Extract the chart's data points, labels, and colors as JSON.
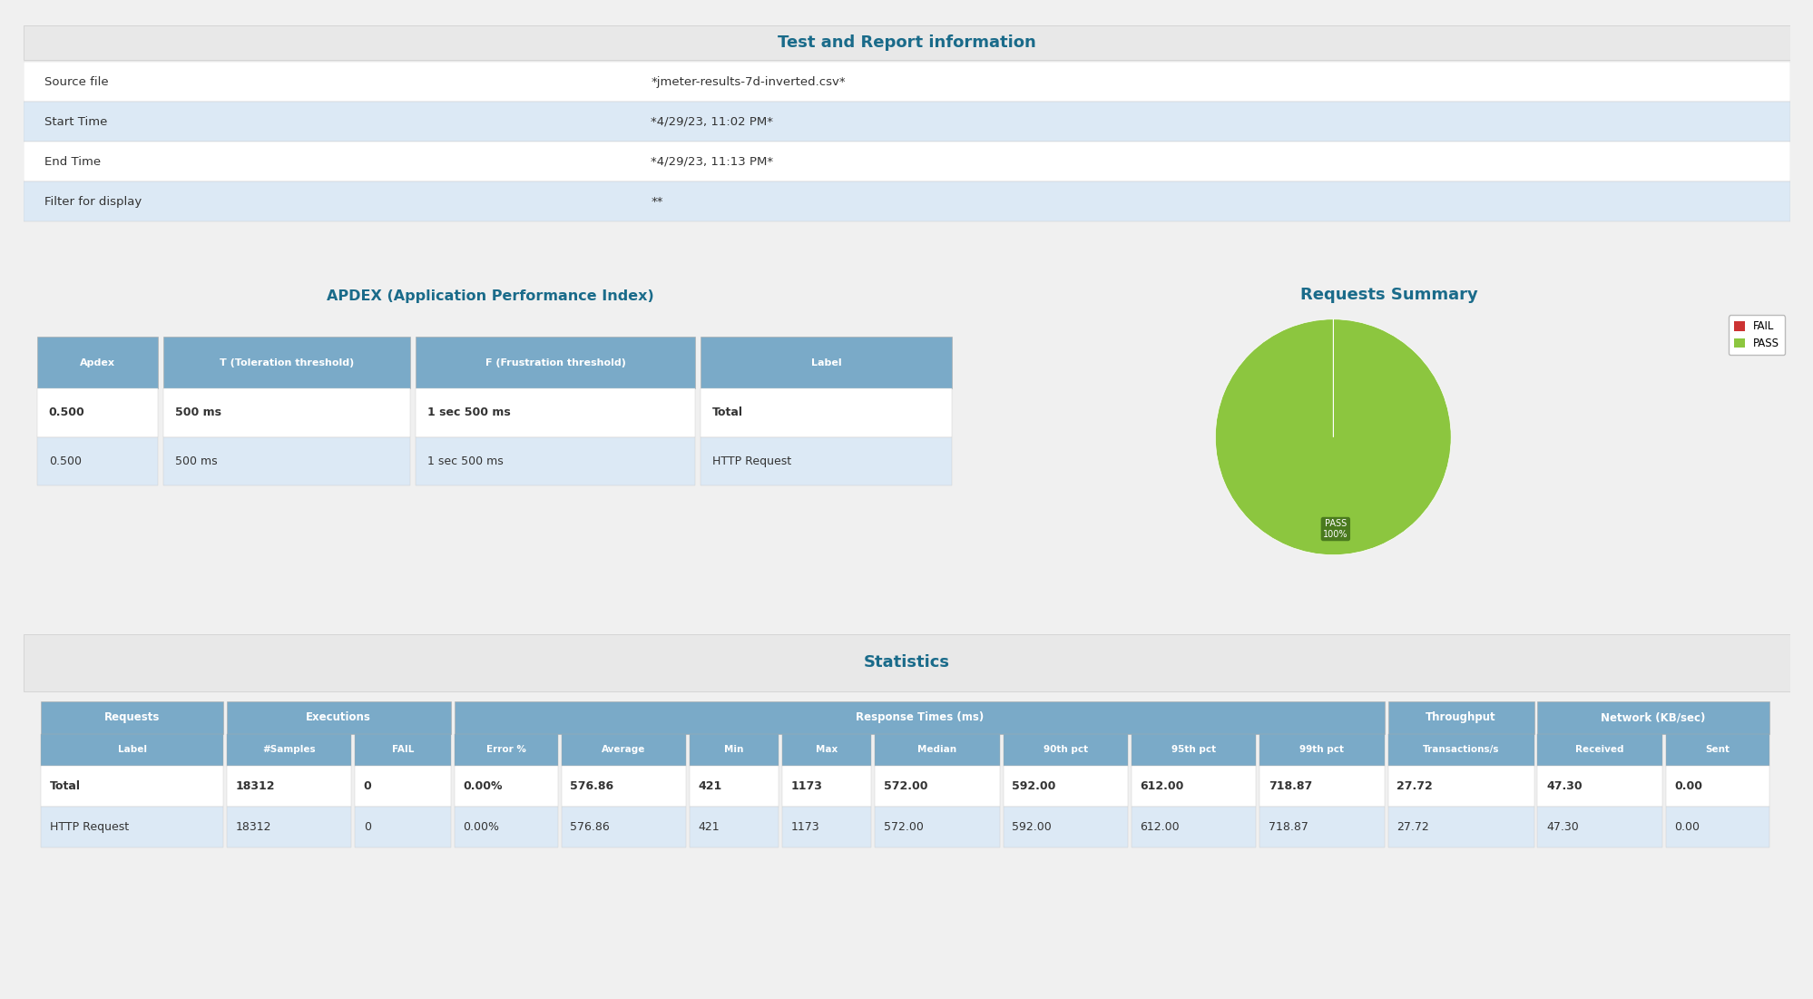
{
  "bg_color": "#f0f0f0",
  "panel_bg": "#ffffff",
  "panel_border": "#cccccc",
  "section_header_bg": "#e8e8e8",
  "table_header_bg": "#7aaac8",
  "table_header_text": "#ffffff",
  "table_row_alt": "#dce9f5",
  "table_row_even": "#ffffff",
  "table_text": "#333333",
  "title_text": "#1a6b8a",
  "report_title": "Test and Report information",
  "report_rows": [
    [
      "Source file",
      "*jmeter-results-7d-inverted.csv*"
    ],
    [
      "Start Time",
      "*4/29/23, 11:02 PM*"
    ],
    [
      "End Time",
      "*4/29/23, 11:13 PM*"
    ],
    [
      "Filter for display",
      "**"
    ]
  ],
  "apdex_title": "APDEX (Application Performance Index)",
  "apdex_headers": [
    "Apdex",
    "T (Toleration threshold)",
    "F (Frustration threshold)",
    "Label"
  ],
  "apdex_rows": [
    [
      "0.500",
      "500 ms",
      "1 sec 500 ms",
      "Total"
    ],
    [
      "0.500",
      "500 ms",
      "1 sec 500 ms",
      "HTTP Request"
    ]
  ],
  "requests_title": "Requests Summary",
  "pie_pass_color": "#8cc63f",
  "pie_fail_color": "#cc3333",
  "pie_label_bg": "#4a7a1e",
  "stats_title": "Statistics",
  "stats_group_spans": [
    [
      "Requests",
      0,
      0
    ],
    [
      "Executions",
      1,
      2
    ],
    [
      "Response Times (ms)",
      3,
      10
    ],
    [
      "Throughput",
      11,
      11
    ],
    [
      "Network (KB/sec)",
      12,
      13
    ]
  ],
  "stats_headers": [
    "Label",
    "#Samples",
    "FAIL",
    "Error %",
    "Average",
    "Min",
    "Max",
    "Median",
    "90th pct",
    "95th pct",
    "99th pct",
    "Transactions/s",
    "Received",
    "Sent"
  ],
  "stats_col_weights": [
    1.3,
    0.9,
    0.7,
    0.75,
    0.9,
    0.65,
    0.65,
    0.9,
    0.9,
    0.9,
    0.9,
    1.05,
    0.9,
    0.75
  ],
  "stats_rows": [
    [
      "Total",
      "18312",
      "0",
      "0.00%",
      "576.86",
      "421",
      "1173",
      "572.00",
      "592.00",
      "612.00",
      "718.87",
      "27.72",
      "47.30",
      "0.00"
    ],
    [
      "HTTP Request",
      "18312",
      "0",
      "0.00%",
      "576.86",
      "421",
      "1173",
      "572.00",
      "592.00",
      "612.00",
      "718.87",
      "27.72",
      "47.30",
      "0.00"
    ]
  ]
}
